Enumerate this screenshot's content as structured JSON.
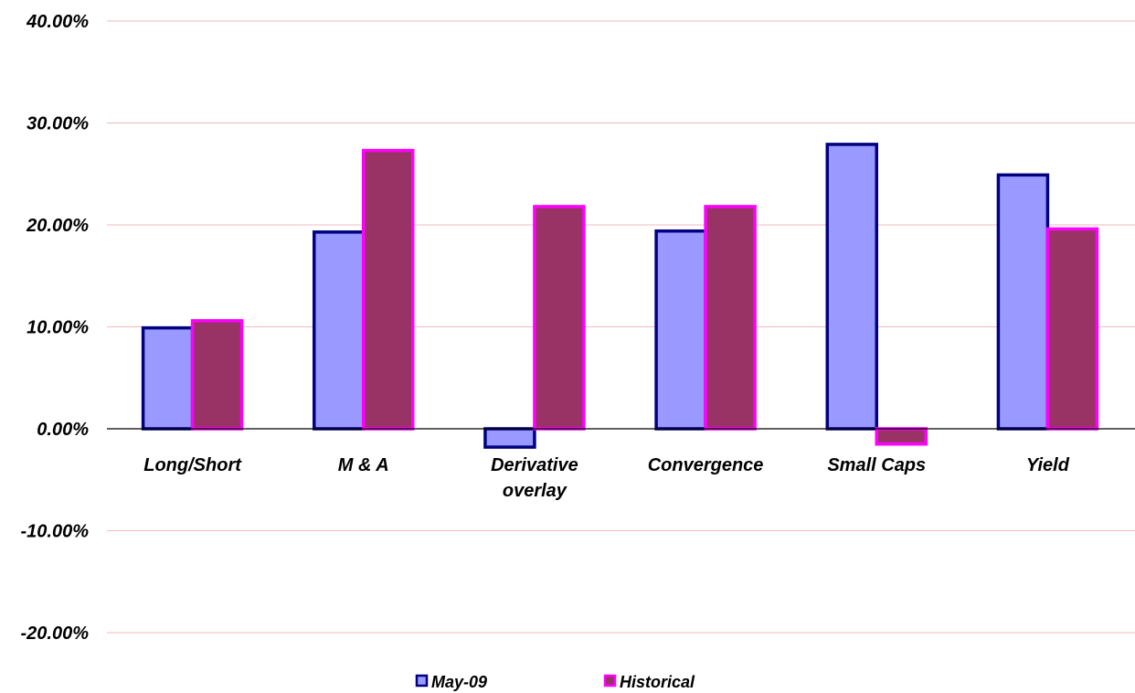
{
  "chart_data": {
    "type": "bar",
    "title": "",
    "xlabel": "",
    "ylabel": "",
    "ylim": [
      -0.2,
      0.4
    ],
    "yticks": [
      0.4,
      0.3,
      0.2,
      0.1,
      0.0,
      -0.1,
      -0.2
    ],
    "ytick_labels": [
      "40.00%",
      "30.00%",
      "20.00%",
      "10.00%",
      "0.00%",
      "-10.00%",
      "-20.00%"
    ],
    "grid": true,
    "legend_position": "bottom",
    "categories": [
      [
        "Long/Short"
      ],
      [
        "M & A"
      ],
      [
        "Derivative",
        "overlay"
      ],
      [
        "Convergence"
      ],
      [
        "Small Caps"
      ],
      [
        "Yield"
      ]
    ],
    "series": [
      {
        "name": "May-09",
        "fill": "#9999ff",
        "stroke": "#000080",
        "values": [
          0.099,
          0.193,
          -0.018,
          0.194,
          0.279,
          0.249
        ]
      },
      {
        "name": "Historical",
        "fill": "#993366",
        "stroke": "#ff00ff",
        "values": [
          0.106,
          0.273,
          0.218,
          0.218,
          -0.015,
          0.196
        ]
      }
    ]
  }
}
